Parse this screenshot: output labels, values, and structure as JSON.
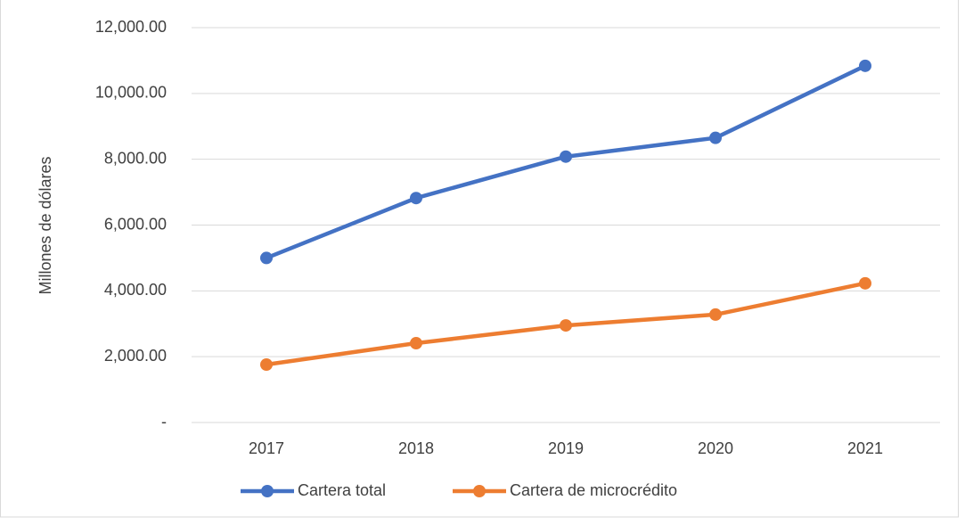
{
  "chart_data": {
    "type": "line",
    "ylabel": "Millones de dólares",
    "categories": [
      "2017",
      "2018",
      "2019",
      "2020",
      "2021"
    ],
    "series": [
      {
        "name": "Cartera total",
        "color": "#4472c4",
        "values": [
          5000,
          6820,
          8080,
          8650,
          10840
        ]
      },
      {
        "name": "Cartera de microcrédito",
        "color": "#ed7d31",
        "values": [
          1760,
          2410,
          2950,
          3280,
          4230
        ]
      }
    ],
    "ylim": [
      0,
      12000
    ],
    "yticks": [
      {
        "value": 0,
        "label": "-"
      },
      {
        "value": 2000,
        "label": "2,000.00"
      },
      {
        "value": 4000,
        "label": "4,000.00"
      },
      {
        "value": 6000,
        "label": "6,000.00"
      },
      {
        "value": 8000,
        "label": "8,000.00"
      },
      {
        "value": 10000,
        "label": "10,000.00"
      },
      {
        "value": 12000,
        "label": "12,000.00"
      }
    ],
    "grid": true,
    "legend": "bottom"
  }
}
